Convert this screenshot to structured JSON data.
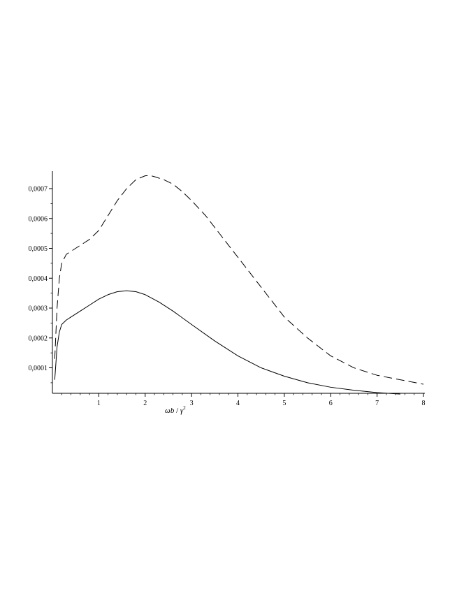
{
  "chart_data": {
    "type": "line",
    "title": "",
    "xlabel_main": "ωb",
    "xlabel_sep": " / ",
    "xlabel_gamma": "γ",
    "xlabel_exp": "2",
    "ylabel": "",
    "xlim": [
      0,
      8
    ],
    "ylim": [
      1e-05,
      0.00075
    ],
    "grid": false,
    "legend": "none",
    "x_ticks": [
      1,
      2,
      3,
      4,
      5,
      6,
      7,
      8
    ],
    "x_tick_labels": [
      "1",
      "2",
      "3",
      "4",
      "5",
      "6",
      "7",
      "8"
    ],
    "y_ticks": [
      0.0001,
      0.0002,
      0.0003,
      0.0004,
      0.0005,
      0.0006,
      0.0007
    ],
    "y_tick_labels": [
      "0,0001",
      "0,0002",
      "0,0003",
      "0,0004",
      "0,0005",
      "0,0006",
      "0,0007"
    ],
    "series": [
      {
        "style": "dashed",
        "color": "#000000",
        "x": [
          0.05,
          0.1,
          0.15,
          0.2,
          0.3,
          0.4,
          0.5,
          0.6,
          0.8,
          1.0,
          1.2,
          1.4,
          1.6,
          1.8,
          2.0,
          2.1,
          2.2,
          2.4,
          2.6,
          2.8,
          3.0,
          3.3,
          3.6,
          4.0,
          4.5,
          5.0,
          5.5,
          6.0,
          6.5,
          7.0,
          7.5,
          8.0
        ],
        "y": [
          0.00013,
          0.0003,
          0.0004,
          0.00045,
          0.00048,
          0.00049,
          0.0005,
          0.00051,
          0.00053,
          0.00056,
          0.00061,
          0.00066,
          0.0007,
          0.00073,
          0.000743,
          0.000744,
          0.00074,
          0.00073,
          0.000715,
          0.00069,
          0.00066,
          0.00061,
          0.00055,
          0.00047,
          0.00037,
          0.00027,
          0.0002,
          0.00014,
          0.0001,
          7.5e-05,
          6e-05,
          4.5e-05
        ]
      },
      {
        "style": "solid",
        "color": "#000000",
        "x": [
          0.05,
          0.1,
          0.15,
          0.2,
          0.3,
          0.4,
          0.6,
          0.8,
          1.0,
          1.2,
          1.4,
          1.6,
          1.8,
          2.0,
          2.3,
          2.6,
          3.0,
          3.5,
          4.0,
          4.5,
          5.0,
          5.5,
          6.0,
          6.5,
          7.0,
          7.5
        ],
        "y": [
          6e-05,
          0.00017,
          0.00022,
          0.000245,
          0.00026,
          0.00027,
          0.00029,
          0.00031,
          0.00033,
          0.000345,
          0.000355,
          0.000358,
          0.000355,
          0.000345,
          0.00032,
          0.00029,
          0.000245,
          0.00019,
          0.00014,
          0.0001,
          7.2e-05,
          5e-05,
          3.5e-05,
          2.5e-05,
          1.7e-05,
          1.2e-05
        ]
      }
    ]
  }
}
